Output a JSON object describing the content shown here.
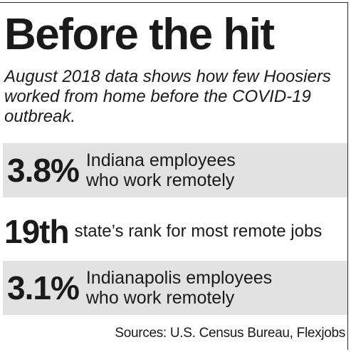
{
  "title": "Before the hit",
  "subtitle": "August 2018 data shows how few Hoosiers worked from home before the COVID-19 outbreak.",
  "stats": [
    {
      "value": "3.8%",
      "label_line1": "Indiana employees",
      "label_line2": "who work remotely",
      "shaded": true
    },
    {
      "value": "19th",
      "label_line1": "state’s rank for most remote jobs",
      "shaded": false
    },
    {
      "value": "3.1%",
      "label_line1": "Indianapolis employees",
      "label_line2": "who work remotely",
      "shaded": true
    }
  ],
  "source": "Sources: U.S. Census Bureau, Flexjobs",
  "colors": {
    "shade": "#e2e2e2",
    "text": "#1a1a1a",
    "rule": "#2a2a2a"
  }
}
